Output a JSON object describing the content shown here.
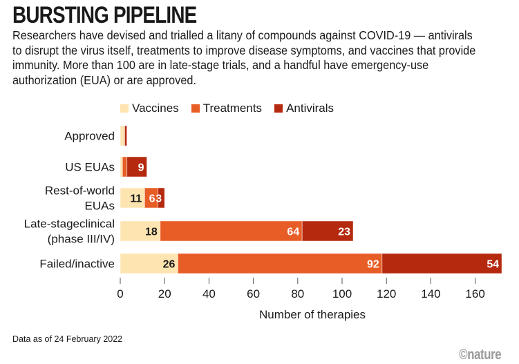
{
  "title": "BURSTING PIPELINE",
  "description": "Researchers have devised and trialled a litany of compounds against COVID-19 — antivirals to disrupt the virus itself, treatments to improve disease symptoms, and vaccines that provide immunity. More than 100 are in late-stage trials, and a handful have emergency-use authorization (EUA) or are approved.",
  "footer": "Data as of 24 February 2022",
  "logo": "©nature",
  "chart_data": {
    "type": "bar",
    "orientation": "horizontal",
    "stacked": true,
    "categories": [
      [
        "Approved"
      ],
      [
        "US EUAs"
      ],
      [
        "Rest-of-world",
        "EUAs"
      ],
      [
        "Late-stageclinical",
        "(phase III/IV)"
      ],
      [
        "Failed/inactive"
      ]
    ],
    "series": [
      {
        "name": "Vaccines",
        "color": "#fde4b0",
        "values": [
          2,
          1,
          11,
          18,
          26
        ],
        "labels": [
          "",
          "",
          "11",
          "18",
          "26"
        ],
        "label_color": "#1a1a1a"
      },
      {
        "name": "Treatments",
        "color": "#e85c25",
        "values": [
          0,
          2,
          6,
          64,
          92
        ],
        "labels": [
          "",
          "",
          "6",
          "64",
          "92"
        ],
        "label_color": "#ffffff"
      },
      {
        "name": "Antivirals",
        "color": "#b5290f",
        "values": [
          1,
          9,
          3,
          23,
          54
        ],
        "labels": [
          "",
          "9",
          "3",
          "23",
          "54"
        ],
        "label_color": "#ffffff"
      }
    ],
    "xlabel": "Number of therapies",
    "xticks": [
      0,
      20,
      40,
      60,
      80,
      100,
      120,
      140,
      160
    ],
    "xlim": [
      0,
      172
    ],
    "legend": "top"
  }
}
